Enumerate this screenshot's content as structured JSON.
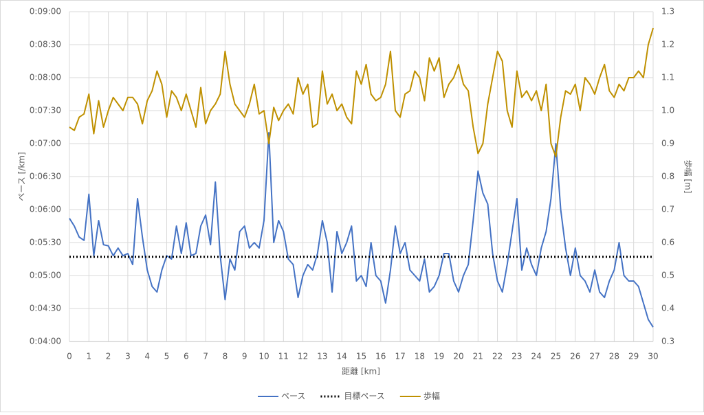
{
  "chart_data": {
    "type": "line",
    "xlabel": "距離 [km]",
    "ylabel": "ペース [/km]",
    "y2label": "歩幅 [m]",
    "x": [
      0,
      0.25,
      0.5,
      0.75,
      1,
      1.25,
      1.5,
      1.75,
      2,
      2.25,
      2.5,
      2.75,
      3,
      3.25,
      3.5,
      3.75,
      4,
      4.25,
      4.5,
      4.75,
      5,
      5.25,
      5.5,
      5.75,
      6,
      6.25,
      6.5,
      6.75,
      7,
      7.25,
      7.5,
      7.75,
      8,
      8.25,
      8.5,
      8.75,
      9,
      9.25,
      9.5,
      9.75,
      10,
      10.25,
      10.5,
      10.75,
      11,
      11.25,
      11.5,
      11.75,
      12,
      12.25,
      12.5,
      12.75,
      13,
      13.25,
      13.5,
      13.75,
      14,
      14.25,
      14.5,
      14.75,
      15,
      15.25,
      15.5,
      15.75,
      16,
      16.25,
      16.5,
      16.75,
      17,
      17.25,
      17.5,
      17.75,
      18,
      18.25,
      18.5,
      18.75,
      19,
      19.25,
      19.5,
      19.75,
      20,
      20.25,
      20.5,
      20.75,
      21,
      21.25,
      21.5,
      21.75,
      22,
      22.25,
      22.5,
      22.75,
      23,
      23.25,
      23.5,
      23.75,
      24,
      24.25,
      24.5,
      24.75,
      25,
      25.25,
      25.5,
      25.75,
      26,
      26.25,
      26.5,
      26.75,
      27,
      27.25,
      27.5,
      27.75,
      28,
      28.25,
      28.5,
      28.75,
      29,
      29.25,
      29.5,
      29.75,
      30
    ],
    "series": [
      {
        "name": "ペース",
        "color": "#4472c4",
        "values": [
          352,
          345,
          335,
          332,
          374,
          318,
          350,
          328,
          327,
          318,
          325,
          318,
          320,
          310,
          370,
          335,
          305,
          290,
          285,
          305,
          318,
          315,
          345,
          320,
          348,
          318,
          320,
          345,
          355,
          328,
          385,
          318,
          278,
          315,
          305,
          340,
          345,
          325,
          330,
          325,
          350,
          430,
          330,
          350,
          340,
          315,
          310,
          280,
          300,
          310,
          305,
          320,
          350,
          330,
          285,
          340,
          320,
          330,
          345,
          295,
          300,
          290,
          330,
          300,
          295,
          275,
          305,
          345,
          320,
          330,
          305,
          300,
          295,
          315,
          285,
          290,
          300,
          320,
          320,
          295,
          285,
          300,
          310,
          350,
          395,
          375,
          365,
          320,
          295,
          285,
          310,
          340,
          370,
          305,
          325,
          310,
          300,
          325,
          340,
          370,
          420,
          360,
          325,
          300,
          325,
          300,
          295,
          285,
          305,
          285,
          280,
          295,
          305,
          330,
          300,
          295,
          295,
          290,
          275,
          260,
          253
        ]
      },
      {
        "name": "目標ペース",
        "color": "#000000",
        "dash": "dotted",
        "x": [
          0,
          30
        ],
        "values": [
          317,
          317
        ]
      },
      {
        "name": "歩幅",
        "color": "#bf9000",
        "axis": "y2",
        "values": [
          0.95,
          0.94,
          0.98,
          0.99,
          1.05,
          0.93,
          1.03,
          0.95,
          1.0,
          1.04,
          1.02,
          1.0,
          1.04,
          1.04,
          1.02,
          0.96,
          1.03,
          1.06,
          1.12,
          1.08,
          0.98,
          1.06,
          1.04,
          1.0,
          1.05,
          1.0,
          0.95,
          1.07,
          0.96,
          1.0,
          1.02,
          1.05,
          1.18,
          1.08,
          1.02,
          1.0,
          0.98,
          1.02,
          1.08,
          0.99,
          1.0,
          0.9,
          1.01,
          0.97,
          1.0,
          1.02,
          0.99,
          1.1,
          1.05,
          1.08,
          0.95,
          0.96,
          1.12,
          1.02,
          1.05,
          1.0,
          1.02,
          0.98,
          0.96,
          1.12,
          1.08,
          1.14,
          1.05,
          1.03,
          1.04,
          1.08,
          1.18,
          1.0,
          0.98,
          1.05,
          1.06,
          1.12,
          1.1,
          1.03,
          1.16,
          1.12,
          1.16,
          1.04,
          1.08,
          1.1,
          1.14,
          1.08,
          1.06,
          0.95,
          0.87,
          0.9,
          1.02,
          1.1,
          1.18,
          1.15,
          1.0,
          0.95,
          1.12,
          1.04,
          1.06,
          1.03,
          1.06,
          1.0,
          1.08,
          0.9,
          0.86,
          0.98,
          1.06,
          1.05,
          1.08,
          1.0,
          1.1,
          1.08,
          1.05,
          1.1,
          1.14,
          1.06,
          1.04,
          1.08,
          1.06,
          1.1,
          1.1,
          1.12,
          1.1,
          1.2,
          1.25
        ]
      }
    ],
    "xlim": [
      0,
      30
    ],
    "xticks": [
      0,
      1,
      2,
      3,
      4,
      5,
      6,
      7,
      8,
      9,
      10,
      11,
      12,
      13,
      14,
      15,
      16,
      17,
      18,
      19,
      20,
      21,
      22,
      23,
      24,
      25,
      26,
      27,
      28,
      29,
      30
    ],
    "ylim": [
      240,
      540
    ],
    "yticks": [
      {
        "value": 240,
        "label": "0:04:00"
      },
      {
        "value": 270,
        "label": "0:04:30"
      },
      {
        "value": 300,
        "label": "0:05:00"
      },
      {
        "value": 330,
        "label": "0:05:30"
      },
      {
        "value": 360,
        "label": "0:06:00"
      },
      {
        "value": 390,
        "label": "0:06:30"
      },
      {
        "value": 420,
        "label": "0:07:00"
      },
      {
        "value": 450,
        "label": "0:07:30"
      },
      {
        "value": 480,
        "label": "0:08:00"
      },
      {
        "value": 510,
        "label": "0:08:30"
      },
      {
        "value": 540,
        "label": "0:09:00"
      }
    ],
    "y2lim": [
      0.3,
      1.3
    ],
    "y2ticks": [
      0.3,
      0.4,
      0.5,
      0.6,
      0.7,
      0.8,
      0.9,
      {
        "value": 1,
        "label": "1.0"
      },
      1.1,
      1.2,
      1.3
    ],
    "grid": true,
    "legend": "bottom"
  }
}
